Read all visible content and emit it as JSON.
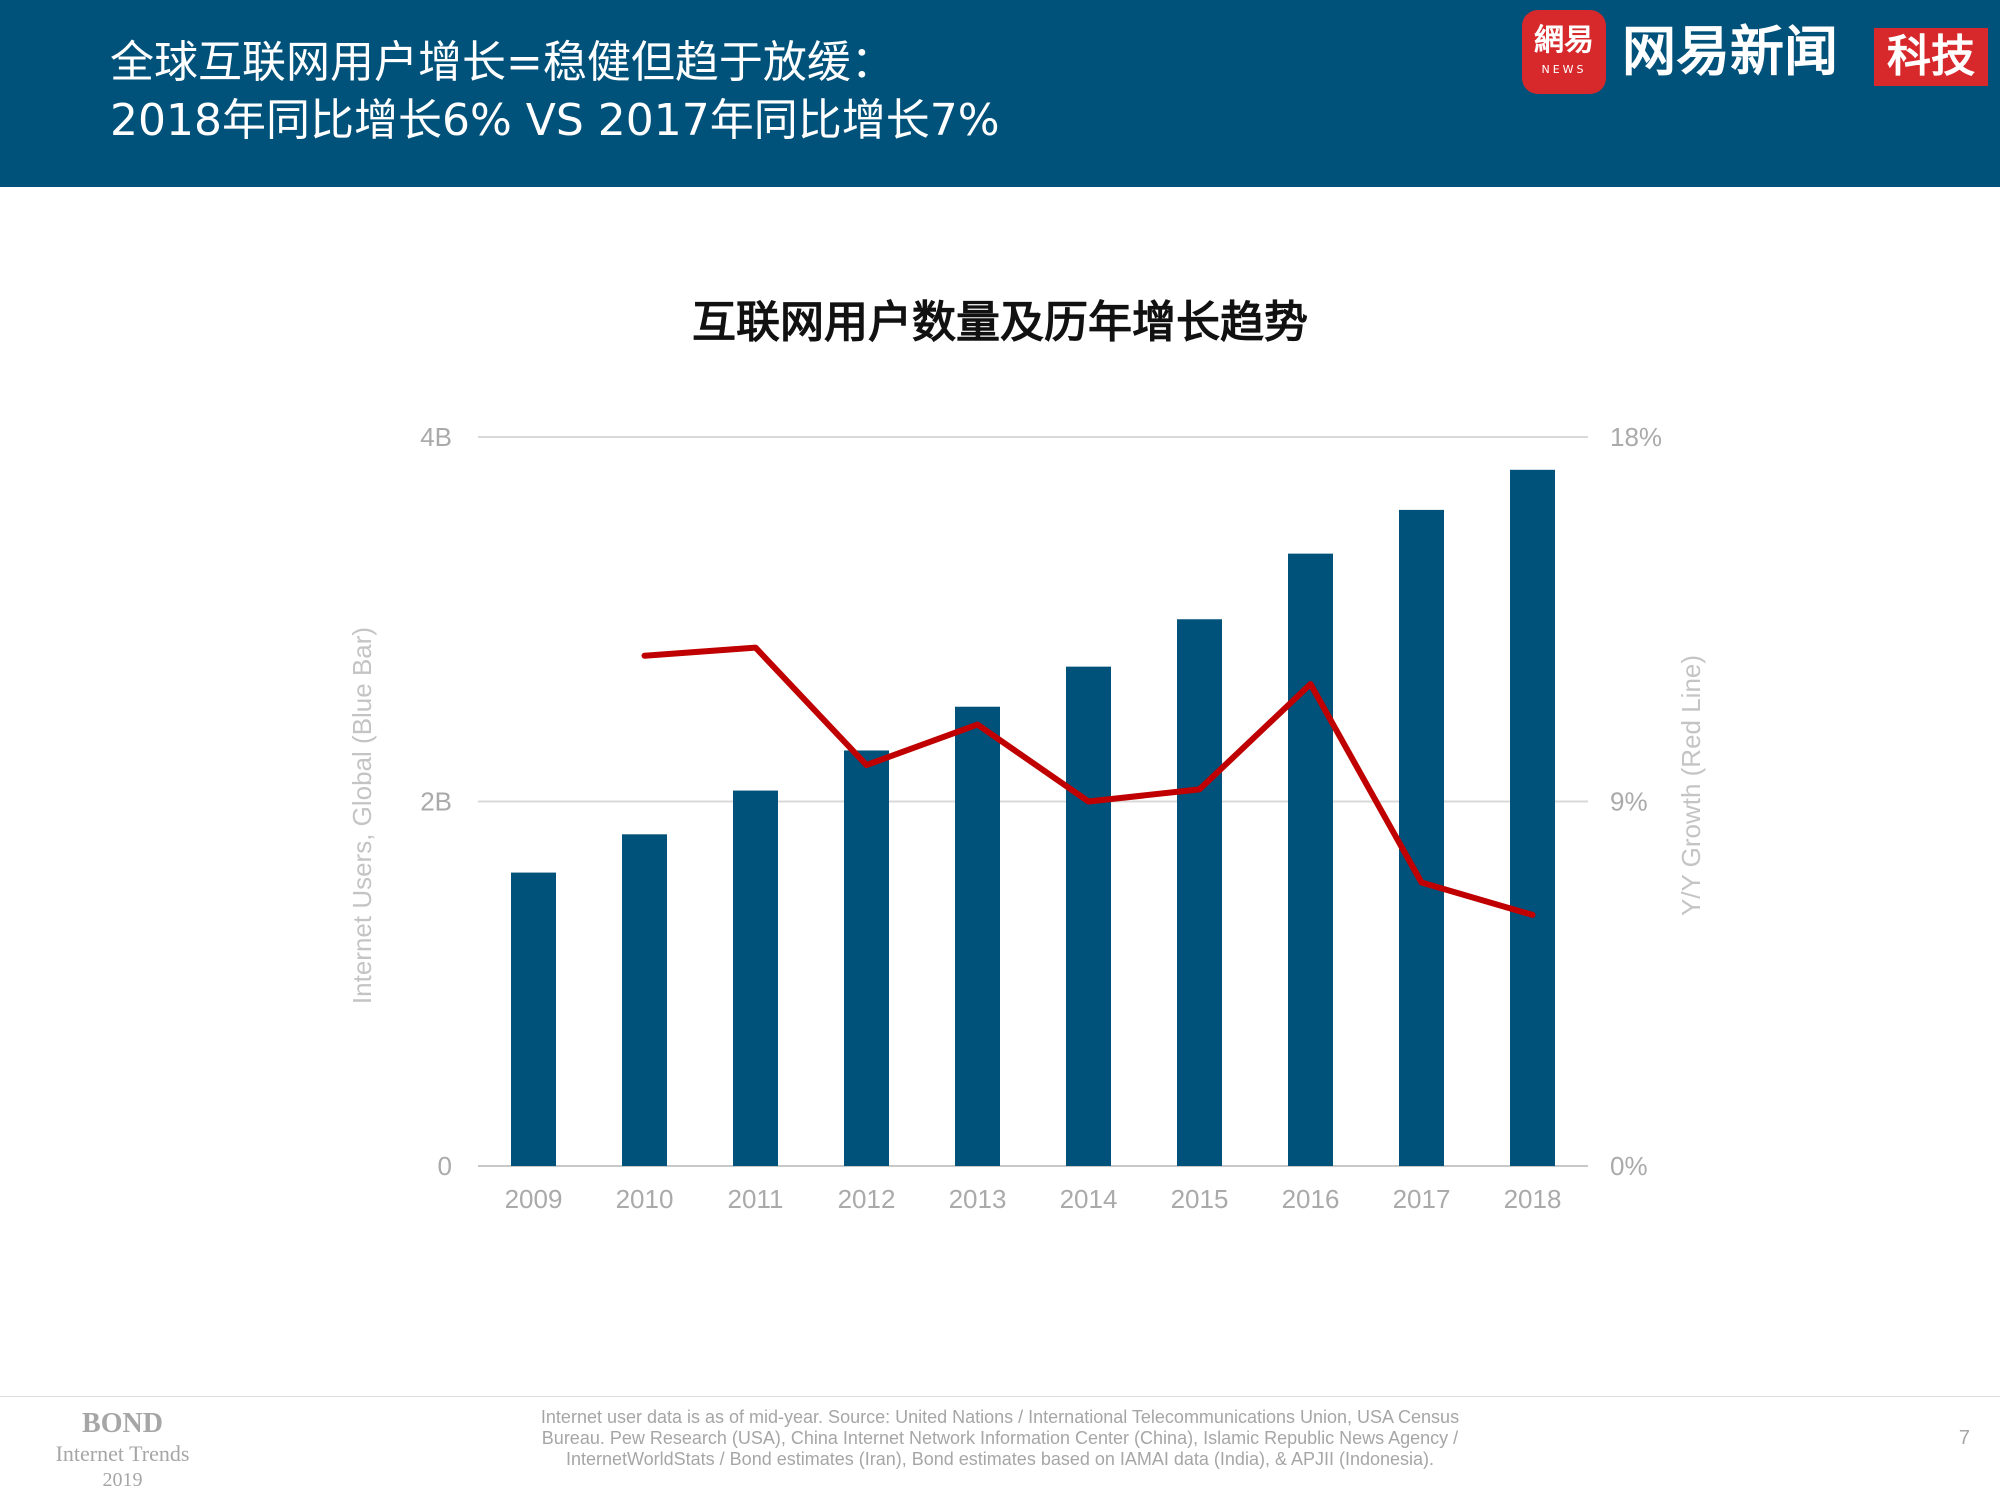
{
  "header": {
    "title_line1": "全球互联网用户增长=稳健但趋于放缓：",
    "title_line2": "2018年同比增长6% VS 2017年同比增长7%"
  },
  "brand": {
    "badge_cn": "網易",
    "badge_en": "NEWS",
    "name": "网易新闻",
    "tag": "科技",
    "color": "#d7282c"
  },
  "footer": {
    "logo_title": "BOND",
    "logo_subtitle": "Internet Trends",
    "logo_year": "2019",
    "source_line1": "Internet user data is as of mid-year.  Source: United Nations / International Telecommunications Union, USA Census",
    "source_line2": "Bureau. Pew Research (USA), China Internet Network Information Center (China), Islamic Republic News Agency /",
    "source_line3": "InternetWorldStats / Bond estimates (Iran), Bond estimates based on IAMAI data (India), & APJII (Indonesia).",
    "page_number": "7"
  },
  "chart_data": {
    "type": "bar",
    "title": "互联网用户数量及历年增长趋势",
    "categories": [
      "2009",
      "2010",
      "2011",
      "2012",
      "2013",
      "2014",
      "2015",
      "2016",
      "2017",
      "2018"
    ],
    "series": [
      {
        "name": "Internet Users, Global (Blue Bar)",
        "type": "bar",
        "axis": "left",
        "color": "#00527a",
        "values": [
          1.61,
          1.82,
          2.06,
          2.28,
          2.52,
          2.74,
          3.0,
          3.36,
          3.6,
          3.82
        ]
      },
      {
        "name": "Y/Y Growth (Red Line)",
        "type": "line",
        "axis": "right",
        "color": "#c00000",
        "values": [
          null,
          12.6,
          12.8,
          9.9,
          10.9,
          9.0,
          9.3,
          11.9,
          7.0,
          6.2
        ]
      }
    ],
    "left_axis": {
      "label": "Internet Users, Global (Blue Bar)",
      "ylim": [
        0,
        4
      ],
      "ticks": [
        0,
        2,
        4
      ],
      "tick_labels": [
        "0",
        "2B",
        "4B"
      ]
    },
    "right_axis": {
      "label": "Y/Y Growth (Red Line)",
      "ylim": [
        0,
        18
      ],
      "ticks": [
        0,
        9,
        18
      ],
      "tick_labels": [
        "0%",
        "9%",
        "18%"
      ]
    },
    "grid": true,
    "legend": "none"
  }
}
